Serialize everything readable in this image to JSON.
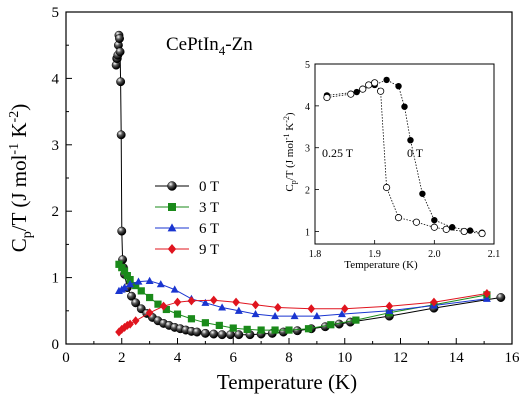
{
  "chart_data": [
    {
      "type": "scatter",
      "annotation": "CePtIn",
      "annotation_sub": "4",
      "annotation_suffix": "-Zn",
      "xlabel": "Temperature (K)",
      "ylabel_main": "C",
      "ylabel_sub": "p",
      "ylabel_mid": "/T (J mol",
      "ylabel_exp1": "-1",
      "ylabel_k": " K",
      "ylabel_exp2": "-2",
      "ylabel_end": ")",
      "xlim": [
        0,
        16
      ],
      "ylim": [
        0,
        5
      ],
      "xticks": [
        "0",
        "2",
        "4",
        "6",
        "8",
        "10",
        "12",
        "14",
        "16"
      ],
      "yticks": [
        "0",
        "1",
        "2",
        "3",
        "4",
        "5"
      ],
      "legend_position": "center-left",
      "series": [
        {
          "name": "0 T",
          "color": "#000000",
          "marker": "sphere",
          "x": [
            1.8,
            1.82,
            1.84,
            1.86,
            1.88,
            1.9,
            1.92,
            1.94,
            1.96,
            1.98,
            2.0,
            2.03,
            2.06,
            2.1,
            2.2,
            2.35,
            2.5,
            2.7,
            2.9,
            3.1,
            3.3,
            3.5,
            3.7,
            3.9,
            4.1,
            4.3,
            4.5,
            4.7,
            5.0,
            5.3,
            5.6,
            5.9,
            6.2,
            6.6,
            7.0,
            7.4,
            7.8,
            8.3,
            8.8,
            9.3,
            9.8,
            10.2,
            11.6,
            13.2,
            15.6
          ],
          "y": [
            4.2,
            4.3,
            4.3,
            4.35,
            4.5,
            4.65,
            4.6,
            4.4,
            3.95,
            3.15,
            1.7,
            1.27,
            1.15,
            1.05,
            0.85,
            0.72,
            0.62,
            0.53,
            0.46,
            0.4,
            0.35,
            0.31,
            0.28,
            0.25,
            0.23,
            0.21,
            0.19,
            0.18,
            0.16,
            0.15,
            0.14,
            0.14,
            0.14,
            0.14,
            0.15,
            0.16,
            0.18,
            0.2,
            0.23,
            0.26,
            0.3,
            0.33,
            0.42,
            0.54,
            0.7
          ]
        },
        {
          "name": "3 T",
          "color": "#1a8a1a",
          "marker": "square",
          "x": [
            1.9,
            2.0,
            2.1,
            2.2,
            2.3,
            2.5,
            2.7,
            3.0,
            3.3,
            3.6,
            4.0,
            4.5,
            5.0,
            5.5,
            6.0,
            6.5,
            7.0,
            7.5,
            8.0,
            8.7,
            9.5,
            10.4,
            11.6,
            13.2,
            15.1
          ],
          "y": [
            1.2,
            1.15,
            1.1,
            1.03,
            0.97,
            0.88,
            0.8,
            0.7,
            0.6,
            0.52,
            0.45,
            0.38,
            0.32,
            0.28,
            0.24,
            0.22,
            0.21,
            0.21,
            0.21,
            0.23,
            0.29,
            0.36,
            0.47,
            0.59,
            0.74
          ]
        },
        {
          "name": "6 T",
          "color": "#1a35d0",
          "marker": "triangle",
          "x": [
            1.9,
            2.0,
            2.1,
            2.3,
            2.6,
            3.0,
            3.4,
            3.9,
            4.5,
            5.0,
            5.6,
            6.2,
            6.8,
            7.5,
            8.2,
            9.0,
            9.9,
            11.6,
            13.2,
            15.1
          ],
          "y": [
            0.8,
            0.82,
            0.85,
            0.9,
            0.94,
            0.95,
            0.9,
            0.82,
            0.68,
            0.62,
            0.55,
            0.5,
            0.45,
            0.42,
            0.42,
            0.42,
            0.45,
            0.5,
            0.58,
            0.68
          ]
        },
        {
          "name": "9 T",
          "color": "#e0141e",
          "marker": "diamond",
          "x": [
            1.9,
            2.0,
            2.1,
            2.2,
            2.3,
            2.5,
            3.0,
            3.5,
            4.0,
            4.5,
            5.3,
            6.1,
            6.8,
            7.6,
            8.8,
            10.0,
            11.6,
            13.2,
            15.1
          ],
          "y": [
            0.18,
            0.22,
            0.25,
            0.28,
            0.3,
            0.35,
            0.47,
            0.57,
            0.63,
            0.65,
            0.66,
            0.63,
            0.59,
            0.55,
            0.53,
            0.53,
            0.57,
            0.63,
            0.76
          ]
        }
      ]
    },
    {
      "type": "line",
      "xlabel": "Temperature (K)",
      "ylabel_main": "C",
      "ylabel_sub": "p",
      "ylabel_mid": "/T (J mol",
      "ylabel_exp1": "-1",
      "ylabel_k": " K",
      "ylabel_exp2": "-2",
      "ylabel_end": ")",
      "xlim": [
        1.8,
        2.1
      ],
      "ylim": [
        0.7,
        5
      ],
      "xticks": [
        "1.8",
        "1.9",
        "2.0",
        "2.1"
      ],
      "yticks": [
        "1",
        "2",
        "3",
        "4",
        "5"
      ],
      "series": [
        {
          "name": "0 T",
          "label": "0 T",
          "marker": "filled-circle",
          "x": [
            1.82,
            1.87,
            1.9,
            1.92,
            1.94,
            1.95,
            1.96,
            1.98,
            2.0,
            2.03,
            2.06,
            2.08
          ],
          "y": [
            4.25,
            4.33,
            4.5,
            4.62,
            4.47,
            3.98,
            3.18,
            1.9,
            1.27,
            1.1,
            1.02,
            0.97
          ]
        },
        {
          "name": "0.25 T",
          "label": "0.25 T",
          "marker": "open-circle",
          "x": [
            1.82,
            1.86,
            1.88,
            1.89,
            1.9,
            1.91,
            1.92,
            1.94,
            1.97,
            2.0,
            2.02,
            2.05,
            2.08
          ],
          "y": [
            4.2,
            4.28,
            4.4,
            4.5,
            4.55,
            4.35,
            2.05,
            1.33,
            1.22,
            1.1,
            1.05,
            1.0,
            0.95
          ]
        }
      ]
    }
  ]
}
